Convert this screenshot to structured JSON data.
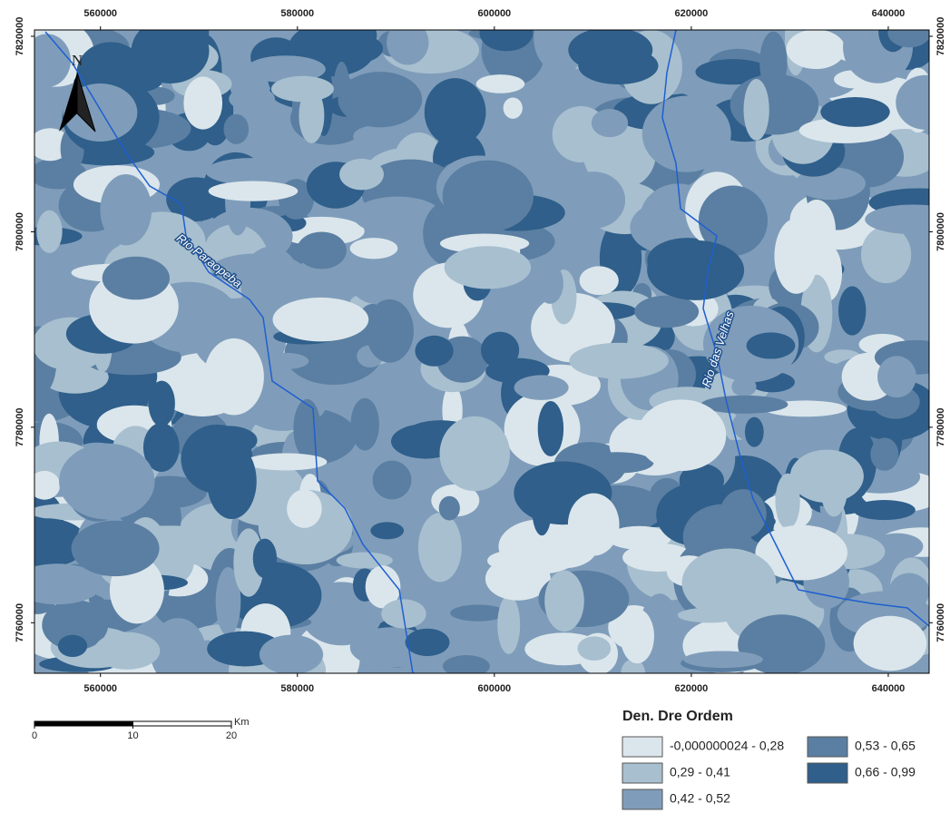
{
  "map": {
    "xlim": [
      553300,
      644150
    ],
    "ylim": [
      7754830,
      7820650
    ],
    "xticks": [
      560000,
      580000,
      600000,
      620000,
      640000
    ],
    "yticks": [
      7760000,
      7780000,
      7800000,
      7820000
    ],
    "north_label": "N",
    "rivers": [
      {
        "label": "Rio Paraopeba"
      },
      {
        "label": "Rio das Velhas"
      }
    ],
    "scale_bar": {
      "ticks": [
        0,
        10,
        20
      ],
      "unit": "Km"
    },
    "legend": {
      "title": "Den. Dre Ordem",
      "classes": [
        {
          "label": "-0,000000024 - 0,28",
          "color": "#dbe6ec"
        },
        {
          "label": "0,29 - 0,41",
          "color": "#a8bfcf"
        },
        {
          "label": "0,42 - 0,52",
          "color": "#7f9dba"
        },
        {
          "label": "0,53 - 0,65",
          "color": "#5b7fa2"
        },
        {
          "label": "0,66 - 0,99",
          "color": "#2f5f8a"
        }
      ]
    }
  }
}
